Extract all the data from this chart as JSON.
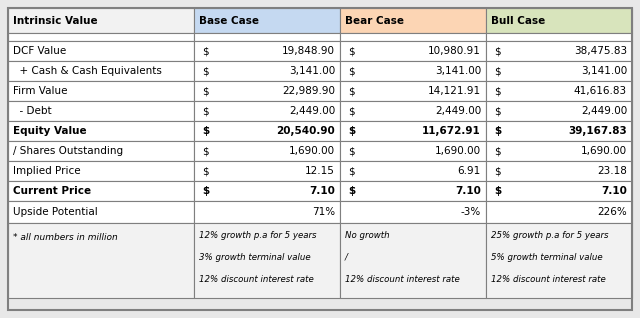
{
  "col_headers": [
    "Intrinsic Value",
    "Base Case",
    "Bear Case",
    "Bull Case"
  ],
  "header_bg_colors": [
    "#f2f2f2",
    "#c5d9f1",
    "#fcd5b4",
    "#d8e4bc"
  ],
  "rows": [
    {
      "label": "DCF Value",
      "bold": false,
      "dollar": [
        "$",
        "$",
        "$"
      ],
      "values": [
        "19,848.90",
        "10,980.91",
        "38,475.83"
      ]
    },
    {
      "label": "  + Cash & Cash Equivalents",
      "bold": false,
      "dollar": [
        "$",
        "$",
        "$"
      ],
      "values": [
        "3,141.00",
        "3,141.00",
        "3,141.00"
      ]
    },
    {
      "label": "Firm Value",
      "bold": false,
      "dollar": [
        "$",
        "$",
        "$"
      ],
      "values": [
        "22,989.90",
        "14,121.91",
        "41,616.83"
      ]
    },
    {
      "label": "  - Debt",
      "bold": false,
      "dollar": [
        "$",
        "$",
        "$"
      ],
      "values": [
        "2,449.00",
        "2,449.00",
        "2,449.00"
      ]
    },
    {
      "label": "Equity Value",
      "bold": true,
      "dollar": [
        "$",
        "$",
        "$"
      ],
      "values": [
        "20,540.90",
        "11,672.91",
        "39,167.83"
      ]
    },
    {
      "label": "/ Shares Outstanding",
      "bold": false,
      "dollar": [
        "$",
        "$",
        "$"
      ],
      "values": [
        "1,690.00",
        "1,690.00",
        "1,690.00"
      ]
    },
    {
      "label": "Implied Price",
      "bold": false,
      "dollar": [
        "$",
        "$",
        "$"
      ],
      "values": [
        "12.15",
        "6.91",
        "23.18"
      ]
    },
    {
      "label": "Current Price",
      "bold": true,
      "dollar": [
        "$",
        "$",
        "$"
      ],
      "values": [
        "7.10",
        "7.10",
        "7.10"
      ]
    }
  ],
  "upside_row": {
    "label": "Upside Potential",
    "values": [
      "71%",
      "-3%",
      "226%"
    ]
  },
  "footer_label": "* all numbers in million",
  "footer_cols": [
    [
      "12% growth p.a for 5 years",
      "3% growth terminal value",
      "12% discount interest rate"
    ],
    [
      "No growth",
      "/",
      "12% discount interest rate"
    ],
    [
      "25% growth p.a for 5 years",
      "5% growth terminal value",
      "12% discount interest rate"
    ]
  ],
  "border_color": "#7f7f7f",
  "text_color": "#000000",
  "bg_white": "#ffffff",
  "bg_footer": "#f2f2f2",
  "bg_outer": "#e8e8e8"
}
